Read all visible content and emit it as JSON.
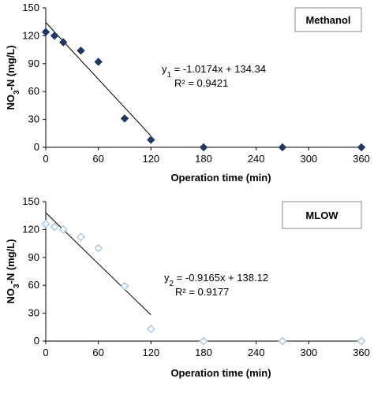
{
  "chart_data": [
    {
      "type": "scatter",
      "legend": "Methanol",
      "legend_placement": "top-right",
      "xlabel": "Operation time (min)",
      "ylabel": "NO3-N (mg/L)",
      "xlim": [
        0,
        360
      ],
      "ylim": [
        0,
        150
      ],
      "xticks": [
        0,
        60,
        120,
        180,
        240,
        300,
        360
      ],
      "yticks": [
        0,
        30,
        60,
        90,
        120,
        150
      ],
      "grid": false,
      "marker": "filled-diamond",
      "color": "#1f3864",
      "x": [
        0,
        10,
        20,
        40,
        60,
        90,
        120,
        180,
        270,
        360
      ],
      "y": [
        124,
        120,
        113,
        104,
        92,
        31,
        8,
        0,
        0,
        0
      ],
      "trendline": {
        "slope": -1.0174,
        "intercept": 134.34,
        "x_range": [
          0,
          120
        ],
        "equation_sub": "1",
        "equation_rest": " = -1.0174x + 134.34",
        "r2": "R² = 0.9421"
      }
    },
    {
      "type": "scatter",
      "legend": "MLOW",
      "legend_placement": "top-right",
      "xlabel": "Operation time (min)",
      "ylabel": "NO3-N (mg/L)",
      "xlim": [
        0,
        360
      ],
      "ylim": [
        0,
        150
      ],
      "xticks": [
        0,
        60,
        120,
        180,
        240,
        300,
        360
      ],
      "yticks": [
        0,
        30,
        60,
        90,
        120,
        150
      ],
      "grid": false,
      "marker": "hollow-diamond",
      "color": "#9dc3e6",
      "x": [
        0,
        10,
        20,
        40,
        60,
        90,
        120,
        180,
        270,
        360
      ],
      "y": [
        126,
        123,
        120,
        112,
        100,
        59,
        13,
        0,
        0,
        0
      ],
      "trendline": {
        "slope": -0.9165,
        "intercept": 138.12,
        "x_range": [
          0,
          120
        ],
        "equation_sub": "2",
        "equation_rest": " = -0.9165x + 138.12",
        "r2": "R² = 0.9177"
      }
    }
  ]
}
